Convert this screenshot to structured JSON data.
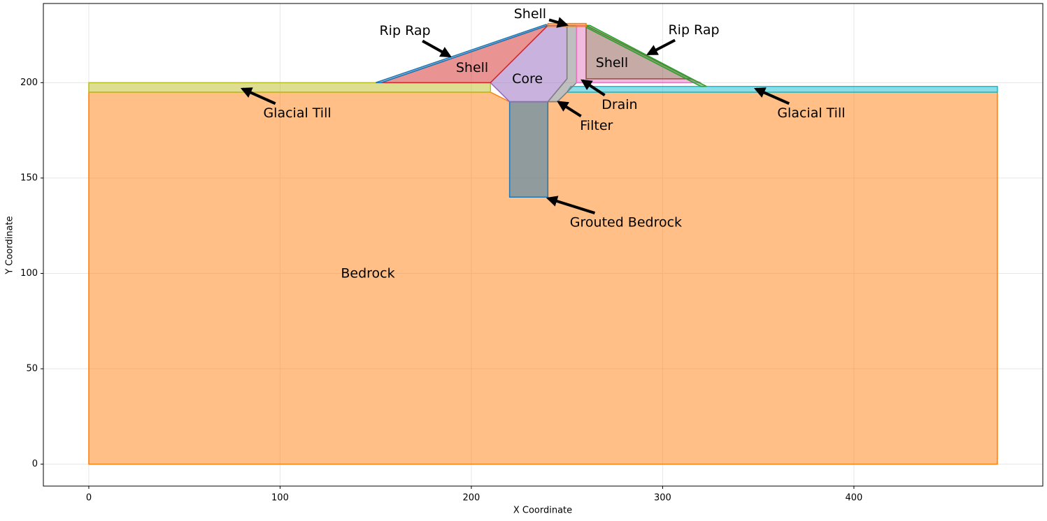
{
  "chart_data": {
    "type": "polygon",
    "xlabel": "X Coordinate",
    "ylabel": "Y Coordinate",
    "xlim": [
      -23.75,
      498.75
    ],
    "ylim": [
      -11.5,
      241.5
    ],
    "xticks": [
      0,
      100,
      200,
      300,
      400
    ],
    "yticks": [
      0,
      50,
      100,
      150,
      200
    ],
    "grid": true,
    "alpha": 0.5,
    "regions": [
      {
        "color": "#ff7f0e",
        "x": [
          0,
          475,
          475,
          250,
          245,
          220,
          210,
          0
        ],
        "y": [
          0,
          0,
          195,
          195,
          190,
          190,
          195,
          195
        ]
      },
      {
        "color": "#1f77b4",
        "x": [
          220,
          240,
          240,
          220
        ],
        "y": [
          140,
          140,
          190,
          190
        ]
      },
      {
        "color": "#bcbd22",
        "x": [
          0,
          210,
          210,
          0
        ],
        "y": [
          195,
          195,
          200,
          200
        ]
      },
      {
        "color": "#17becf",
        "x": [
          250,
          475,
          475,
          252
        ],
        "y": [
          195,
          195,
          198,
          198
        ]
      },
      {
        "color": "#9467bd",
        "x": [
          220,
          240,
          250,
          250,
          240,
          210
        ],
        "y": [
          190,
          190,
          202,
          230,
          230,
          200
        ]
      },
      {
        "color": "#7f7f7f",
        "x": [
          240,
          245,
          255,
          255,
          250,
          250
        ],
        "y": [
          190,
          190,
          200,
          230,
          230,
          202
        ]
      },
      {
        "color": "#e377c2",
        "x": [
          255,
          320,
          314,
          260,
          260,
          255
        ],
        "y": [
          200,
          200,
          202,
          202,
          230,
          230
        ]
      },
      {
        "color": "#8c564b",
        "x": [
          260,
          315,
          260
        ],
        "y": [
          230,
          202,
          202
        ]
      },
      {
        "color": "#2ca02c",
        "x": [
          260,
          262,
          323,
          320,
          260
        ],
        "y": [
          230,
          230,
          198,
          198,
          229
        ]
      },
      {
        "color": "#d62728",
        "x": [
          153,
          210,
          240
        ],
        "y": [
          200,
          200,
          230
        ]
      },
      {
        "color": "#1f77b4",
        "x": [
          150,
          153,
          240,
          239
        ],
        "y": [
          200,
          200,
          230,
          230.5
        ]
      },
      {
        "color": "#ff7f0e",
        "x": [
          240,
          260,
          260,
          240
        ],
        "y": [
          229.5,
          229.5,
          231,
          231
        ]
      }
    ],
    "annotations": [
      {
        "text": "Shell",
        "xytext": [
          230.7,
          235.8
        ],
        "xy": [
          249.7,
          230.3
        ]
      },
      {
        "text": "Rip Rap",
        "xytext": [
          165.3,
          227
        ],
        "xy": [
          188.7,
          213.9
        ]
      },
      {
        "text": "Shell",
        "xytext": [
          200.4,
          207.7
        ]
      },
      {
        "text": "Core",
        "xytext": [
          229.3,
          201.8
        ]
      },
      {
        "text": "Rip Rap",
        "xytext": [
          316.3,
          227.4
        ],
        "xy": [
          292.5,
          215
        ]
      },
      {
        "text": "Shell",
        "xytext": [
          273.5,
          210.2
        ]
      },
      {
        "text": "Drain",
        "xytext": [
          277.5,
          188.3
        ],
        "xy": [
          258.1,
          201.1
        ]
      },
      {
        "text": "Filter",
        "xytext": [
          265.4,
          177.3
        ],
        "xy": [
          245.7,
          189.8
        ]
      },
      {
        "text": "Glacial Till",
        "xytext": [
          109,
          183.9
        ],
        "xy": [
          80.4,
          196.7
        ]
      },
      {
        "text": "Glacial Till",
        "xytext": [
          377.7,
          183.9
        ],
        "xy": [
          348.8,
          196.7
        ]
      },
      {
        "text": "Grouted Bedrock",
        "xytext": [
          280.8,
          126.5
        ],
        "xy": [
          240.2,
          139.3
        ]
      },
      {
        "text": "Bedrock",
        "xytext": [
          145.9,
          99.8
        ]
      }
    ]
  }
}
